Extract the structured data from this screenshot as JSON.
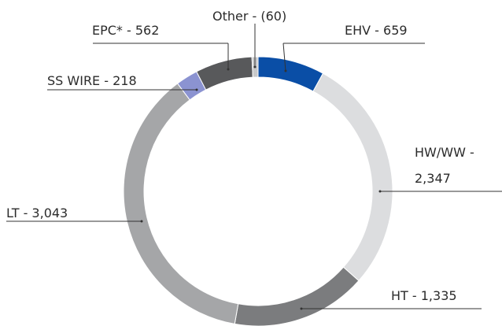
{
  "chart_data": {
    "type": "donut",
    "values": [
      659,
      2347,
      1335,
      3043,
      218,
      562,
      -60
    ],
    "value_labels": [
      "EHV - 659",
      "HW/WW - 2,347",
      "HT - 1,335",
      "LT - 3,043",
      "SS WIRE - 218",
      "EPC* - 562",
      "Other - (60)"
    ],
    "colors": [
      "#0a4ea6",
      "#dcdddf",
      "#7b7c7e",
      "#a5a6a8",
      "#8b93d1",
      "#58595b",
      "#c8c9ca"
    ]
  }
}
